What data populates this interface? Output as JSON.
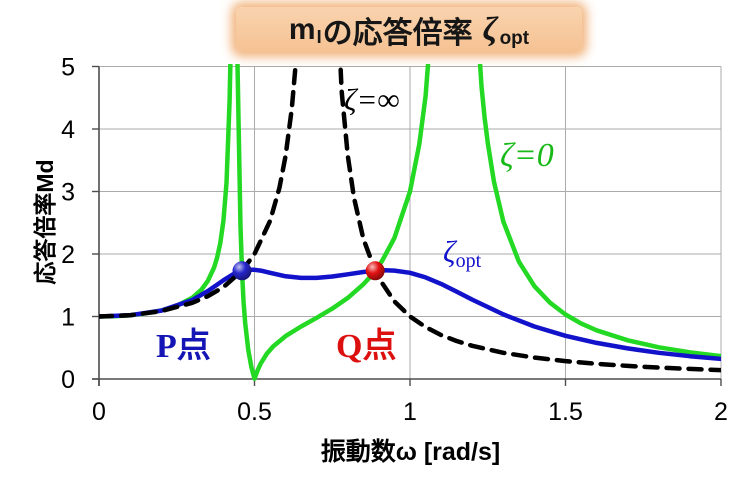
{
  "colors": {
    "background": "#FFFFFF",
    "grid": "#ABABAB",
    "axis": "#4D4D4D",
    "title_bg": "#F7C89E",
    "title_glow": "#EFA35F",
    "green_curve": "#23D923",
    "blue_curve": "#1212CB",
    "black_curve": "#000000",
    "p_dot": "#2626CC",
    "q_dot": "#E31212"
  },
  "title_box": {
    "mass_symbol": "m",
    "mass_subscript": "I",
    "middle_text": "の応答倍率",
    "zeta_symbol": "ζ",
    "zeta_subscript": "opt"
  },
  "labels": {
    "zeta_infinity": "ζ=∞",
    "zeta_zero": "ζ=0",
    "zeta_opt_symbol": "ζ",
    "zeta_opt_subscript": "opt"
  },
  "chart_data": {
    "type": "line",
    "title": "m|の応答倍率 ζopt",
    "xlabel": "振動数ω [rad/s]",
    "ylabel": "応答倍率Md",
    "xlim": [
      0,
      2
    ],
    "ylim": [
      0,
      5
    ],
    "grid": true,
    "legend_position": "inline-annotations",
    "xticks": {
      "values": [
        0,
        0.5,
        1,
        1.5,
        2
      ],
      "labels": [
        "0",
        "0.5",
        "1",
        "1.5",
        "2"
      ]
    },
    "yticks": {
      "values": [
        0,
        1,
        2,
        3,
        4,
        5
      ],
      "labels": [
        "0",
        "1",
        "2",
        "3",
        "4",
        "5"
      ]
    },
    "series": [
      {
        "id": "zeta0",
        "name": "ζ=0",
        "color": "#23D923",
        "width": 4.5,
        "dash": null,
        "segments": [
          [
            [
              0,
              1.0
            ],
            [
              0.05,
              1.005
            ],
            [
              0.1,
              1.021
            ],
            [
              0.15,
              1.052
            ],
            [
              0.2,
              1.096
            ],
            [
              0.25,
              1.171
            ],
            [
              0.3,
              1.3
            ],
            [
              0.33,
              1.432
            ],
            [
              0.35,
              1.569
            ],
            [
              0.37,
              1.784
            ],
            [
              0.38,
              1.947
            ],
            [
              0.39,
              2.176
            ],
            [
              0.4,
              2.528
            ],
            [
              0.41,
              3.137
            ],
            [
              0.42,
              4.456
            ],
            [
              0.4236,
              5.3
            ]
          ],
          [
            [
              0.4445,
              5.3
            ],
            [
              0.45,
              3.727
            ],
            [
              0.455,
              2.431
            ],
            [
              0.46,
              1.697
            ],
            [
              0.465,
              1.224
            ],
            [
              0.47,
              0.894
            ],
            [
              0.48,
              0.461
            ],
            [
              0.49,
              0.189
            ],
            [
              0.5,
              0.005
            ],
            [
              0.51,
              0.139
            ],
            [
              0.52,
              0.247
            ],
            [
              0.54,
              0.406
            ],
            [
              0.56,
              0.521
            ],
            [
              0.6,
              0.686
            ],
            [
              0.65,
              0.84
            ],
            [
              0.7,
              0.98
            ],
            [
              0.75,
              1.127
            ],
            [
              0.8,
              1.298
            ],
            [
              0.85,
              1.516
            ],
            [
              0.87,
              1.622
            ],
            [
              0.89,
              1.75
            ],
            [
              0.91,
              1.887
            ],
            [
              0.95,
              2.256
            ],
            [
              1.0,
              3.0
            ],
            [
              1.03,
              3.757
            ],
            [
              1.05,
              4.529
            ],
            [
              1.062,
              5.3
            ]
          ],
          [
            [
              1.222,
              5.3
            ],
            [
              1.23,
              4.686
            ],
            [
              1.24,
              4.183
            ],
            [
              1.25,
              3.775
            ],
            [
              1.27,
              3.154
            ],
            [
              1.3,
              2.521
            ],
            [
              1.35,
              1.877
            ],
            [
              1.4,
              1.485
            ],
            [
              1.45,
              1.221
            ],
            [
              1.5,
              1.032
            ],
            [
              1.55,
              0.89
            ],
            [
              1.6,
              0.78
            ],
            [
              1.7,
              0.619
            ],
            [
              1.8,
              0.508
            ],
            [
              1.9,
              0.427
            ],
            [
              2.0,
              0.366
            ]
          ]
        ]
      },
      {
        "id": "zetaopt",
        "name": "ζopt",
        "color": "#1212CB",
        "width": 4.5,
        "dash": null,
        "segments": [
          [
            [
              0,
              1.0
            ],
            [
              0.1,
              1.021
            ],
            [
              0.2,
              1.095
            ],
            [
              0.3,
              1.264
            ],
            [
              0.35,
              1.407
            ],
            [
              0.4,
              1.579
            ],
            [
              0.43,
              1.672
            ],
            [
              0.4597,
              1.732
            ],
            [
              0.48,
              1.749
            ],
            [
              0.5,
              1.748
            ],
            [
              0.52,
              1.734
            ],
            [
              0.55,
              1.7
            ],
            [
              0.6,
              1.644
            ],
            [
              0.65,
              1.617
            ],
            [
              0.7,
              1.617
            ],
            [
              0.75,
              1.64
            ],
            [
              0.8,
              1.675
            ],
            [
              0.85,
              1.712
            ],
            [
              0.8881,
              1.732
            ],
            [
              0.92,
              1.74
            ],
            [
              0.95,
              1.735
            ],
            [
              1.0,
              1.699
            ],
            [
              1.05,
              1.625
            ],
            [
              1.1,
              1.521
            ],
            [
              1.15,
              1.399
            ],
            [
              1.2,
              1.271
            ],
            [
              1.3,
              1.033
            ],
            [
              1.4,
              0.84
            ],
            [
              1.5,
              0.691
            ],
            [
              1.6,
              0.577
            ],
            [
              1.7,
              0.489
            ],
            [
              1.8,
              0.42
            ],
            [
              1.9,
              0.365
            ],
            [
              2.0,
              0.321
            ]
          ]
        ]
      },
      {
        "id": "zetainf",
        "name": "ζ=∞",
        "color": "#000000",
        "width": 4.5,
        "dash": [
          13,
          9
        ],
        "segments": [
          [
            [
              0,
              1.0
            ],
            [
              0.1,
              1.02
            ],
            [
              0.2,
              1.087
            ],
            [
              0.3,
              1.22
            ],
            [
              0.35,
              1.325
            ],
            [
              0.4,
              1.471
            ],
            [
              0.4597,
              1.732
            ],
            [
              0.5,
              2.0
            ],
            [
              0.55,
              2.532
            ],
            [
              0.58,
              3.056
            ],
            [
              0.6,
              3.571
            ],
            [
              0.62,
              4.325
            ],
            [
              0.637,
              5.3
            ]
          ],
          [
            [
              0.774,
              5.3
            ],
            [
              0.78,
              4.613
            ],
            [
              0.8,
              3.571
            ],
            [
              0.82,
              2.9
            ],
            [
              0.85,
              2.247
            ],
            [
              0.8881,
              1.732
            ],
            [
              0.9,
              1.613
            ],
            [
              0.95,
              1.242
            ],
            [
              1.0,
              1.0
            ],
            [
              1.05,
              0.83
            ],
            [
              1.1,
              0.704
            ],
            [
              1.15,
              0.608
            ],
            [
              1.2,
              0.532
            ],
            [
              1.3,
              0.42
            ],
            [
              1.4,
              0.342
            ],
            [
              1.5,
              0.286
            ],
            [
              1.6,
              0.243
            ],
            [
              1.7,
              0.209
            ],
            [
              1.8,
              0.182
            ],
            [
              1.9,
              0.161
            ],
            [
              2.0,
              0.143
            ]
          ]
        ]
      }
    ],
    "markers": [
      {
        "id": "p-point",
        "x": 0.4597,
        "y": 1.732,
        "color": "#2626CC",
        "label": "P点"
      },
      {
        "id": "q-point",
        "x": 0.8881,
        "y": 1.732,
        "color": "#E31212",
        "label": "Q点"
      }
    ]
  }
}
